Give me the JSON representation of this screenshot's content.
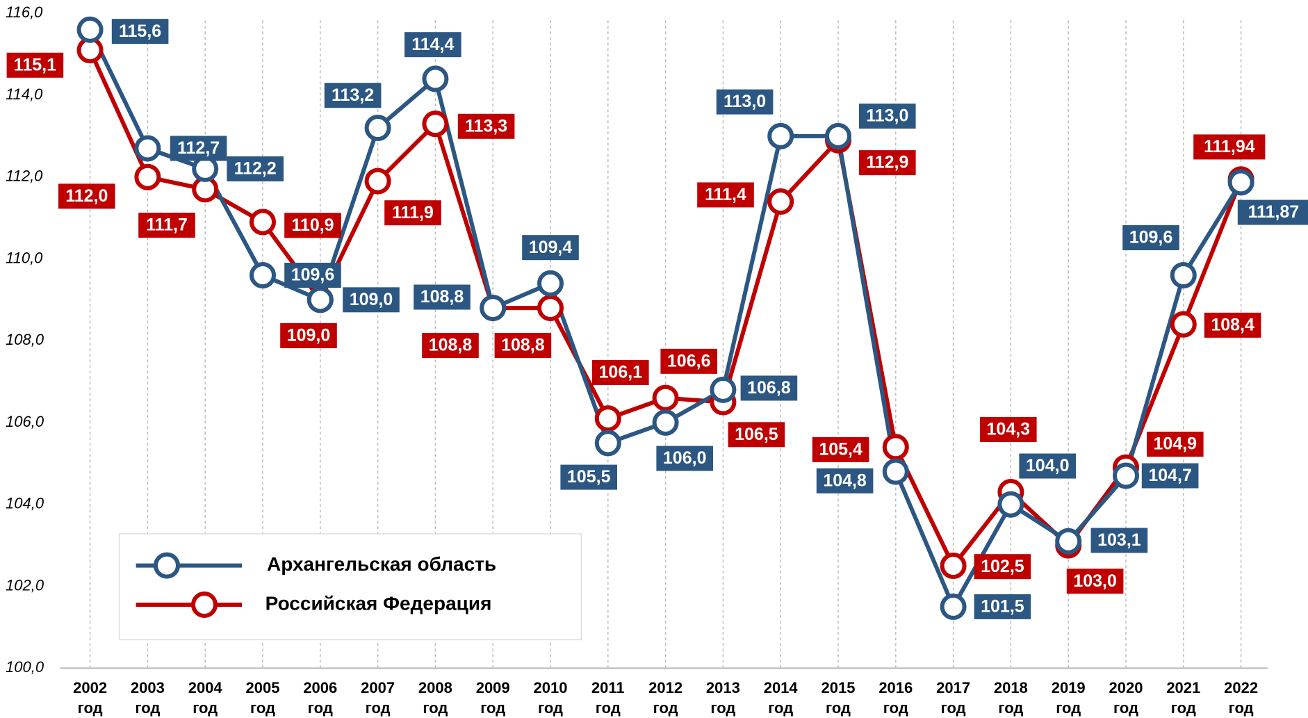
{
  "chart_data": {
    "type": "line",
    "categories": [
      "2002 год",
      "2003 год",
      "2004 год",
      "2005 год",
      "2006 год",
      "2007 год",
      "2008 год",
      "2009 год",
      "2010 год",
      "2011 год",
      "2012 год",
      "2013 год",
      "2014 год",
      "2015 год",
      "2016 год",
      "2017 год",
      "2018 год",
      "2019 год",
      "2020 год",
      "2021 год",
      "2022 год"
    ],
    "series": [
      {
        "name": "Российская Федерация",
        "color": "#c00000",
        "values": [
          115.1,
          112.0,
          111.7,
          110.9,
          109.0,
          111.9,
          113.3,
          108.8,
          108.8,
          106.1,
          106.6,
          106.5,
          111.4,
          112.9,
          105.4,
          102.5,
          104.3,
          103.0,
          104.9,
          108.4,
          111.94
        ],
        "value_labels": [
          "115,1",
          "112,0",
          "111,7",
          "110,9",
          "109,0",
          "111,9",
          "113,3",
          "108,8",
          "108,8",
          "106,1",
          "106,6",
          "106,5",
          "111,4",
          "112,9",
          "105,4",
          "102,5",
          "104,3",
          "103,0",
          "104,9",
          "108,4",
          "111,94"
        ]
      },
      {
        "name": "Архангельская область",
        "color": "#2b5782",
        "values": [
          115.6,
          112.7,
          112.2,
          109.6,
          109.0,
          113.2,
          114.4,
          108.8,
          109.4,
          105.5,
          106.0,
          106.8,
          113.0,
          113.0,
          104.8,
          101.5,
          104.0,
          103.1,
          104.7,
          109.6,
          111.87
        ],
        "value_labels": [
          "115,6",
          "112,7",
          "112,2",
          "109,6",
          "109,0",
          "113,2",
          "114,4",
          "108,8",
          "109,4",
          "105,5",
          "106,0",
          "106,8",
          "113,0",
          "113,0",
          "104,8",
          "101,5",
          "104,0",
          "103,1",
          "104,7",
          "109,6",
          "111,87"
        ]
      }
    ],
    "ylim": [
      100,
      116
    ],
    "yticks": [
      {
        "value": 100,
        "label": "100,0"
      },
      {
        "value": 102,
        "label": "102,0"
      },
      {
        "value": 104,
        "label": "104,0"
      },
      {
        "value": 106,
        "label": "106,0"
      },
      {
        "value": 108,
        "label": "108,0"
      },
      {
        "value": 110,
        "label": "110,0"
      },
      {
        "value": 112,
        "label": "112,0"
      },
      {
        "value": 114,
        "label": "114,0"
      },
      {
        "value": 116,
        "label": "116,0"
      }
    ],
    "legend": "lower left"
  }
}
